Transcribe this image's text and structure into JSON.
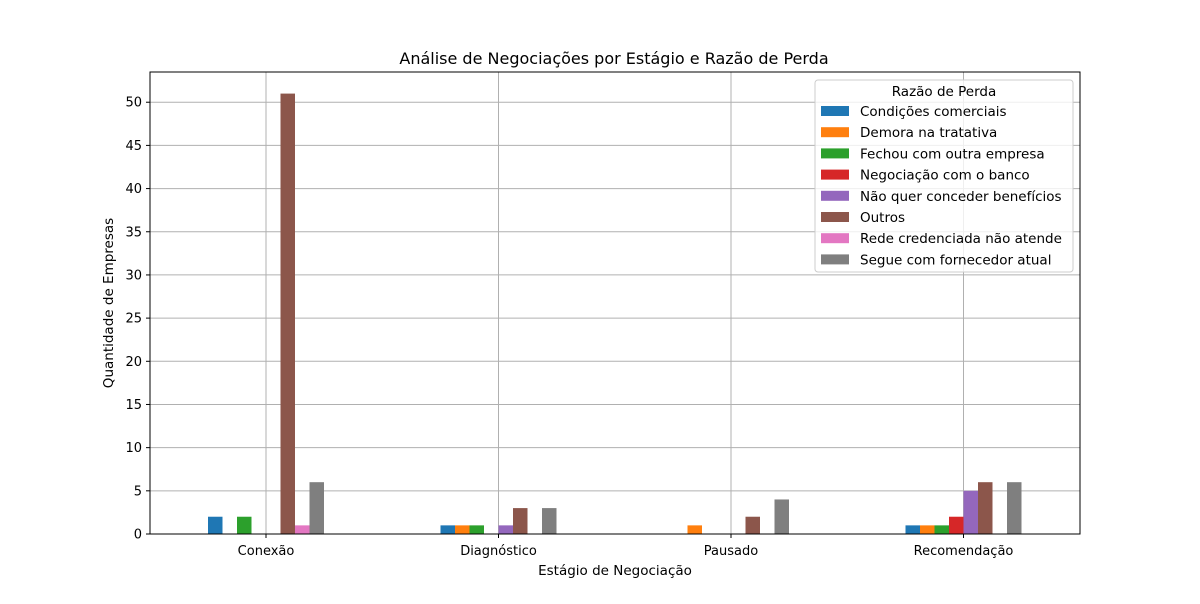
{
  "chart_data": {
    "type": "bar",
    "title": "Análise de Negociações por Estágio e Razão de Perda",
    "xlabel": "Estágio de Negociação",
    "ylabel": "Quantidade de Empresas",
    "ylim": [
      0,
      53.5
    ],
    "yticks": [
      0,
      5,
      10,
      15,
      20,
      25,
      30,
      35,
      40,
      45,
      50
    ],
    "grid": true,
    "legend_position": "top-right",
    "legend_title": "Razão de Perda",
    "categories": [
      "Conexão",
      "Diagnóstico",
      "Pausado",
      "Recomendação"
    ],
    "series": [
      {
        "name": "Condições comerciais",
        "color": "#1f77b4",
        "values": [
          2,
          1,
          0,
          1
        ]
      },
      {
        "name": "Demora na tratativa",
        "color": "#ff7f0e",
        "values": [
          0,
          1,
          1,
          1
        ]
      },
      {
        "name": "Fechou com outra empresa",
        "color": "#2ca02c",
        "values": [
          2,
          1,
          0,
          1
        ]
      },
      {
        "name": "Negociação com o banco",
        "color": "#d62728",
        "values": [
          0,
          0,
          0,
          2
        ]
      },
      {
        "name": "Não quer conceder benefícios",
        "color": "#9467bd",
        "values": [
          0,
          1,
          0,
          5
        ]
      },
      {
        "name": "Outros",
        "color": "#8c564b",
        "values": [
          51,
          3,
          2,
          6
        ]
      },
      {
        "name": "Rede credenciada não atende",
        "color": "#e377c2",
        "values": [
          1,
          0,
          0,
          0
        ]
      },
      {
        "name": "Segue com fornecedor atual",
        "color": "#7f7f7f",
        "values": [
          6,
          3,
          4,
          6
        ]
      }
    ]
  }
}
